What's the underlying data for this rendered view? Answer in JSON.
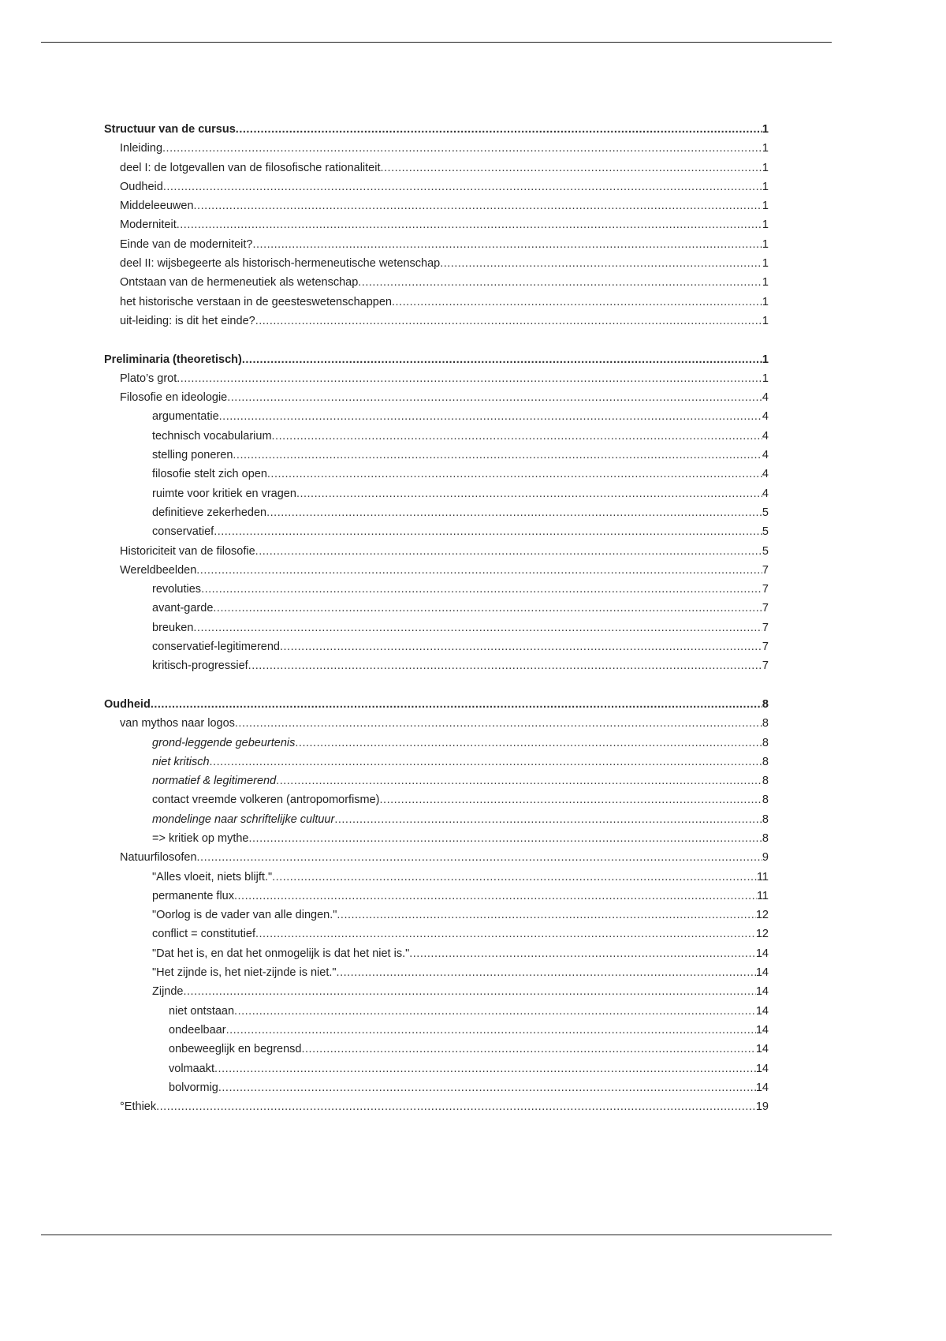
{
  "toc": [
    {
      "title": "Structuur van de cursus",
      "page": "1",
      "level": 0,
      "bold": true
    },
    {
      "title": "Inleiding",
      "page": "1",
      "level": 1
    },
    {
      "title": "deel I: de lotgevallen van de filosofische rationaliteit",
      "page": "1",
      "level": 1
    },
    {
      "title": "Oudheid",
      "page": "1",
      "level": 1
    },
    {
      "title": "Middeleeuwen",
      "page": "1",
      "level": 1
    },
    {
      "title": "Moderniteit",
      "page": "1",
      "level": 1
    },
    {
      "title": "Einde van de moderniteit?",
      "page": "1",
      "level": 1
    },
    {
      "title": "deel II: wijsbegeerte als historisch-hermeneutische wetenschap",
      "page": "1",
      "level": 1
    },
    {
      "title": "Ontstaan van de hermeneutiek als wetenschap",
      "page": "1",
      "level": 1
    },
    {
      "title": "het historische verstaan in de geesteswetenschappen",
      "page": "1",
      "level": 1
    },
    {
      "title": "uit-leiding: is dit het einde?",
      "page": "1",
      "level": 1
    },
    {
      "title": "Preliminaria (theoretisch)",
      "page": "1",
      "level": 0,
      "bold": true,
      "gap": true
    },
    {
      "title": "Plato’s grot",
      "page": "1",
      "level": 1
    },
    {
      "title": "Filosofie en ideologie",
      "page": "4",
      "level": 1
    },
    {
      "title": "argumentatie",
      "page": "4",
      "level": 2
    },
    {
      "title": "technisch vocabularium",
      "page": "4",
      "level": 2
    },
    {
      "title": "stelling poneren",
      "page": "4",
      "level": 2
    },
    {
      "title": "filosofie stelt zich open",
      "page": "4",
      "level": 2
    },
    {
      "title": "ruimte voor kritiek en vragen",
      "page": "4",
      "level": 2
    },
    {
      "title": "definitieve zekerheden",
      "page": "5",
      "level": 2
    },
    {
      "title": "conservatief",
      "page": "5",
      "level": 2
    },
    {
      "title": "Historiciteit van de filosofie",
      "page": "5",
      "level": 1
    },
    {
      "title": "Wereldbeelden",
      "page": "7",
      "level": 1
    },
    {
      "title": "revoluties",
      "page": "7",
      "level": 2
    },
    {
      "title": "avant-garde",
      "page": "7",
      "level": 2
    },
    {
      "title": "breuken",
      "page": "7",
      "level": 2
    },
    {
      "title": "conservatief-legitimerend",
      "page": "7",
      "level": 2
    },
    {
      "title": "kritisch-progressief",
      "page": "7",
      "level": 2
    },
    {
      "title": "Oudheid",
      "page": "8",
      "level": 0,
      "bold": true,
      "gap": true
    },
    {
      "title": "van mythos naar logos",
      "page": "8",
      "level": 1
    },
    {
      "title": "grond-leggende gebeurtenis",
      "page": "8",
      "level": 2,
      "italic": true
    },
    {
      "title": "niet kritisch",
      "page": "8",
      "level": 2,
      "italic": true
    },
    {
      "title": "normatief & legitimerend",
      "page": "8",
      "level": 2,
      "italic": true
    },
    {
      "title": "contact vreemde volkeren (antropomorfisme)",
      "page": "8",
      "level": 2
    },
    {
      "title": "mondelinge naar schriftelijke cultuur",
      "page": "8",
      "level": 2,
      "italic": true
    },
    {
      "title": "=> kritiek op mythe",
      "page": "8",
      "level": 2
    },
    {
      "title": "Natuurfilosofen",
      "page": "9",
      "level": 1
    },
    {
      "title": "\"Alles vloeit, niets blijft.\"",
      "page": "11",
      "level": 2
    },
    {
      "title": "permanente flux",
      "page": "11",
      "level": 2
    },
    {
      "title": "\"Oorlog is de vader van alle dingen.\"",
      "page": "12",
      "level": 2
    },
    {
      "title": "conflict = constitutief",
      "page": "12",
      "level": 2
    },
    {
      "title": "\"Dat het is, en dat het onmogelijk is dat het niet is.\"",
      "page": "14",
      "level": 2
    },
    {
      "title": "\"Het zijnde is, het niet-zijnde is niet.\"",
      "page": "14",
      "level": 2
    },
    {
      "title": "Zijnde",
      "page": "14",
      "level": 2
    },
    {
      "title": "niet ontstaan",
      "page": "14",
      "level": 3
    },
    {
      "title": "ondeelbaar",
      "page": "14",
      "level": 3
    },
    {
      "title": "onbeweeglijk en begrensd",
      "page": "14",
      "level": 3
    },
    {
      "title": "volmaakt",
      "page": "14",
      "level": 3
    },
    {
      "title": "bolvormig",
      "page": "14",
      "level": 3
    },
    {
      "title": "°Ethiek",
      "page": "19",
      "level": 1
    }
  ]
}
